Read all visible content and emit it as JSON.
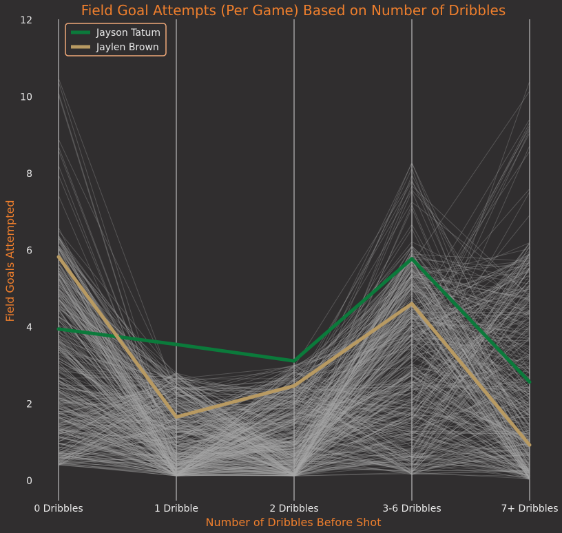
{
  "chart_data": {
    "type": "line",
    "chart_style": "parallel-coordinates",
    "title": "Field Goal Attempts (Per Game) Based on Number of Dribbles",
    "xlabel": "Number of Dribbles Before Shot",
    "ylabel": "Field Goals Attempted",
    "categories": [
      "0 Dribbles",
      "1 Dribble",
      "2 Dribbles",
      "3-6 Dribbles",
      "7+ Dribbles"
    ],
    "ylim": [
      -0.7,
      12
    ],
    "yticks": [
      0,
      2,
      4,
      6,
      8,
      10,
      12
    ],
    "grid": "vertical-at-categories",
    "legend_position": "top-left",
    "series": [
      {
        "name": "Jayson Tatum",
        "values": [
          3.95,
          3.55,
          3.12,
          5.78,
          2.57
        ],
        "color": "#0b7a3b"
      },
      {
        "name": "Jaylen Brown",
        "values": [
          5.83,
          1.66,
          2.47,
          4.61,
          0.93
        ],
        "color": "#b89a62"
      }
    ],
    "background_series_note": "All other players",
    "background_series_color": "#a8a8a8",
    "background_series_count": 420
  },
  "colors": {
    "background": "#302e2f",
    "accent": "#ef7f2d",
    "text": "#e8e8e8",
    "grid": "#d8d8d8",
    "legend_border": "#f0a878"
  }
}
